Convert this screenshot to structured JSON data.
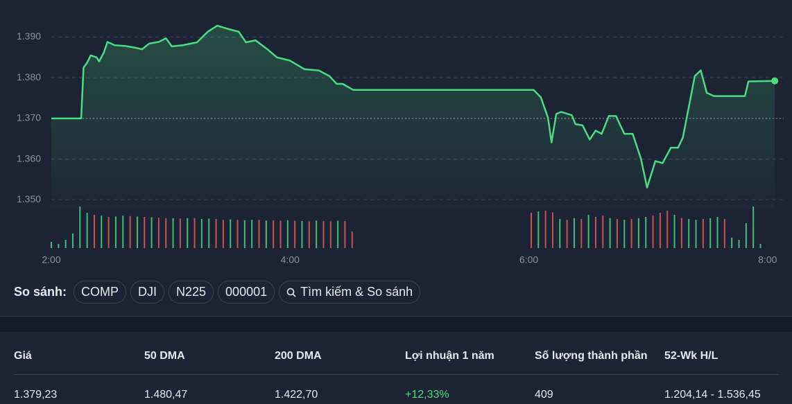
{
  "chart_data": {
    "type": "line",
    "x": [
      2.0,
      2.25,
      2.27,
      2.3,
      2.33,
      2.38,
      2.4,
      2.44,
      2.47,
      2.53,
      2.62,
      2.7,
      2.76,
      2.82,
      2.9,
      2.96,
      3.01,
      3.1,
      3.22,
      3.31,
      3.39,
      3.48,
      3.57,
      3.63,
      3.71,
      3.81,
      3.89,
      4.0,
      4.12,
      4.24,
      4.33,
      4.39,
      4.44,
      4.53,
      6.04,
      6.1,
      6.16,
      6.19,
      6.23,
      6.27,
      6.36,
      6.39,
      6.45,
      6.51,
      6.56,
      6.61,
      6.67,
      6.73,
      6.8,
      6.87,
      6.94,
      6.99,
      7.06,
      7.12,
      7.19,
      7.25,
      7.29,
      7.35,
      7.39,
      7.44,
      7.49,
      7.55,
      7.81,
      7.84,
      8.06
    ],
    "series": [
      {
        "color": "#4ade80",
        "values": [
          1370,
          1370,
          1382.5,
          1383.7,
          1385.5,
          1385,
          1384,
          1386.2,
          1388.8,
          1388,
          1387.8,
          1387.4,
          1387,
          1388.4,
          1388.8,
          1389.7,
          1387.7,
          1388,
          1388.7,
          1391.3,
          1392.8,
          1392,
          1391.3,
          1388.7,
          1389.2,
          1387,
          1385,
          1384.2,
          1382.1,
          1381.8,
          1380.4,
          1378.5,
          1378.5,
          1377,
          1377,
          1375.2,
          1370.2,
          1364.1,
          1371.1,
          1371.6,
          1370.8,
          1368.6,
          1368.3,
          1364.8,
          1367,
          1366.2,
          1370.6,
          1370.6,
          1366.2,
          1366.2,
          1360,
          1353,
          1359.5,
          1359,
          1362.8,
          1362.8,
          1365.3,
          1374.3,
          1380.4,
          1381.8,
          1376.3,
          1375.5,
          1375.5,
          1379.1,
          1379.23
        ]
      }
    ],
    "xlim": [
      2,
      8.065
    ],
    "xticks": [
      {
        "value": 2,
        "label": "2:00"
      },
      {
        "value": 4,
        "label": "4:00"
      },
      {
        "value": 6,
        "label": "6:00"
      },
      {
        "value": 8,
        "label": "8:00"
      }
    ],
    "ylim": [
      1348,
      1394
    ],
    "yticks": [
      {
        "value": 1350,
        "label": "1.350"
      },
      {
        "value": 1360,
        "label": "1.360"
      },
      {
        "value": 1370,
        "label": "1.370"
      },
      {
        "value": 1380,
        "label": "1.380"
      },
      {
        "value": 1390,
        "label": "1.390"
      }
    ],
    "grid": true,
    "reference_line": 1370,
    "volume": {
      "up_color": "#3fbf7a",
      "down_color": "#c65454",
      "ylim": [
        0,
        100
      ],
      "x": [
        2.0,
        2.06,
        2.12,
        2.18,
        2.24,
        2.3,
        2.36,
        2.42,
        2.48,
        2.54,
        2.6,
        2.66,
        2.72,
        2.78,
        2.84,
        2.9,
        2.96,
        3.02,
        3.08,
        3.14,
        3.2,
        3.26,
        3.32,
        3.38,
        3.44,
        3.5,
        3.56,
        3.62,
        3.68,
        3.74,
        3.8,
        3.86,
        3.92,
        3.98,
        4.04,
        4.1,
        4.16,
        4.22,
        4.28,
        4.34,
        4.4,
        4.46,
        4.52,
        6.02,
        6.08,
        6.14,
        6.2,
        6.26,
        6.32,
        6.38,
        6.44,
        6.5,
        6.56,
        6.62,
        6.68,
        6.74,
        6.8,
        6.86,
        6.92,
        6.98,
        7.04,
        7.1,
        7.16,
        7.22,
        7.28,
        7.34,
        7.4,
        7.46,
        7.52,
        7.58,
        7.64,
        7.7,
        7.76,
        7.82,
        7.88,
        7.94
      ],
      "values": [
        15,
        10,
        20,
        35,
        100,
        85,
        80,
        78,
        75,
        76,
        78,
        77,
        76,
        75,
        74,
        73,
        72,
        72,
        71,
        72,
        72,
        70,
        71,
        70,
        68,
        69,
        68,
        67,
        68,
        68,
        66,
        67,
        66,
        67,
        66,
        65,
        64,
        66,
        65,
        64,
        66,
        65,
        40,
        85,
        88,
        90,
        86,
        70,
        68,
        72,
        70,
        80,
        75,
        78,
        72,
        70,
        68,
        70,
        72,
        75,
        78,
        85,
        90,
        80,
        72,
        70,
        68,
        70,
        72,
        75,
        70,
        25,
        20,
        60,
        100,
        10
      ],
      "up": [
        1,
        1,
        1,
        1,
        1,
        1,
        0,
        1,
        0,
        1,
        1,
        0,
        1,
        0,
        1,
        0,
        0,
        1,
        0,
        1,
        0,
        1,
        1,
        0,
        0,
        1,
        0,
        1,
        1,
        0,
        1,
        0,
        0,
        1,
        0,
        1,
        0,
        1,
        0,
        0,
        1,
        0,
        0,
        0,
        1,
        0,
        0,
        1,
        0,
        1,
        0,
        1,
        0,
        0,
        1,
        0,
        1,
        0,
        1,
        1,
        0,
        0,
        0,
        1,
        0,
        1,
        1,
        0,
        1,
        1,
        0,
        1,
        1,
        1,
        1,
        1
      ]
    }
  },
  "compare": {
    "label": "So sánh:",
    "chips": [
      "COMP",
      "DJI",
      "N225",
      "000001"
    ],
    "search": "Tìm kiếm & So sánh"
  },
  "stats": {
    "headers": [
      "Giá",
      "50 DMA",
      "200 DMA",
      "Lợi nhuận 1 năm",
      "Số lượng thành phần",
      "52-Wk H/L"
    ],
    "values": [
      "1.379,23",
      "1.480,47",
      "1.422,70",
      "+12,33%",
      "409",
      "1.204,14 - 1.536,45"
    ]
  }
}
